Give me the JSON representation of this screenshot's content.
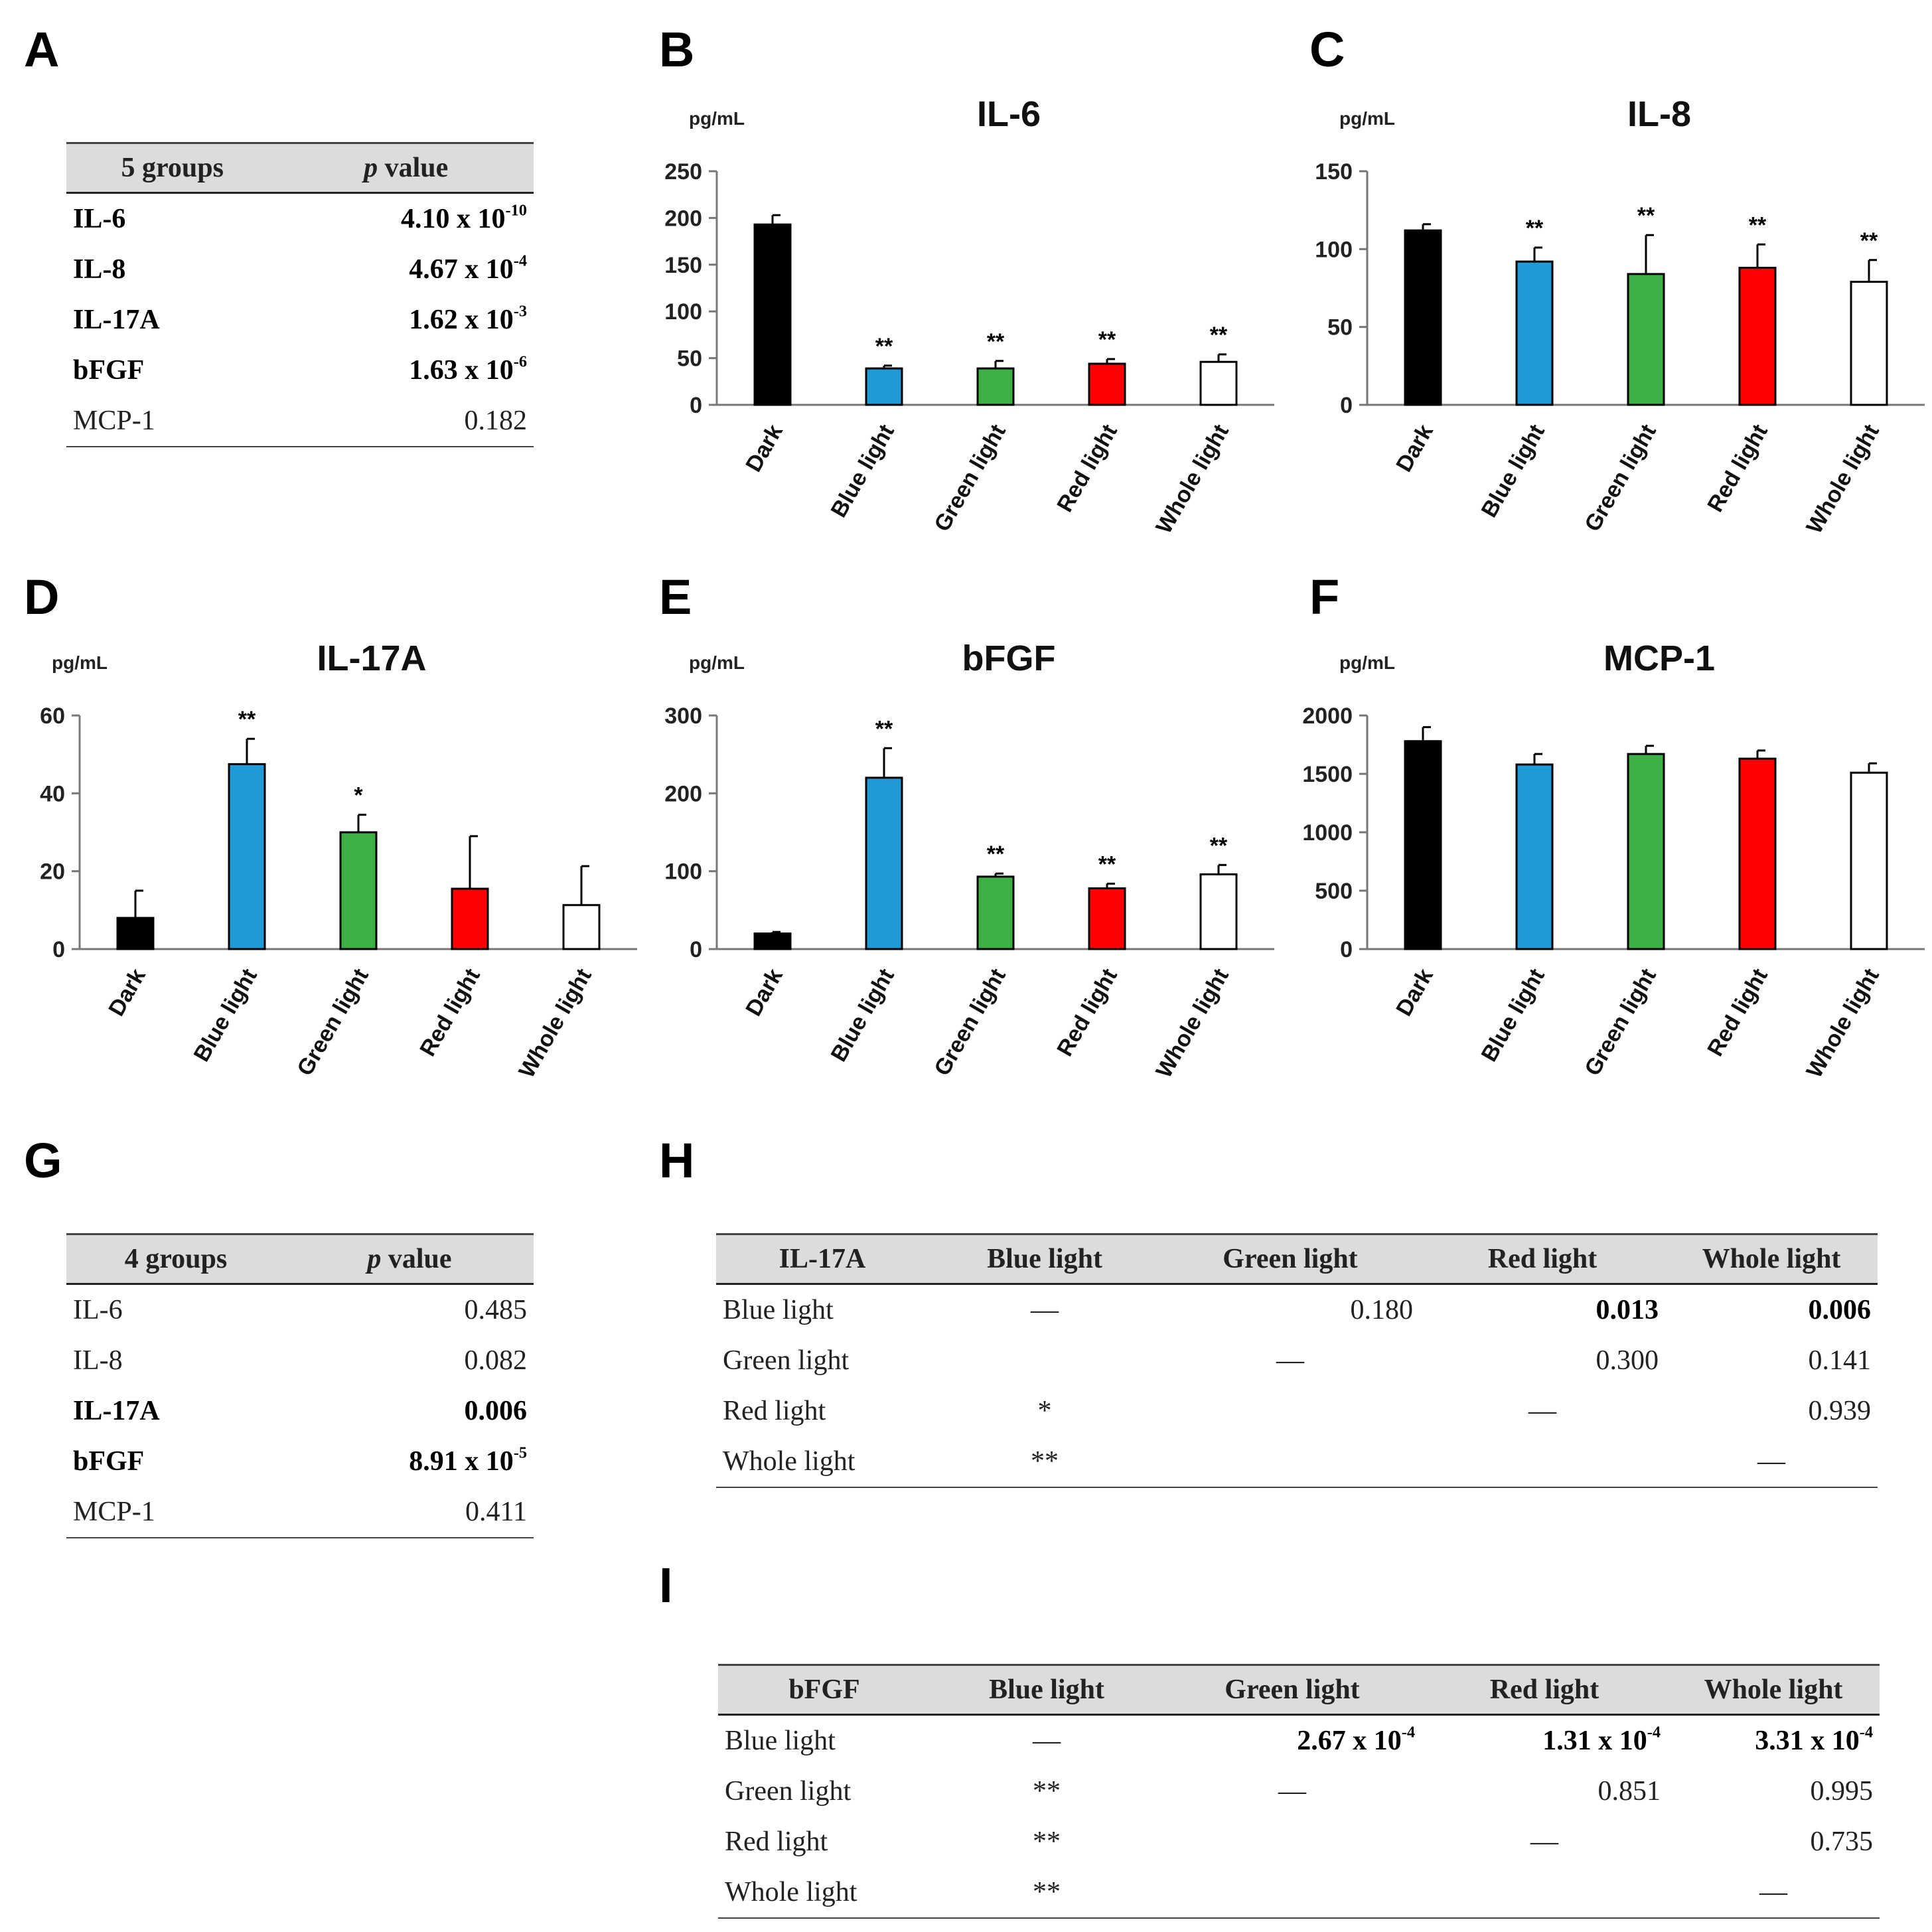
{
  "panels": {
    "A": "A",
    "B": "B",
    "C": "C",
    "D": "D",
    "E": "E",
    "F": "F",
    "G": "G",
    "H": "H",
    "I": "I"
  },
  "table_a": {
    "headers": [
      "5 groups",
      "p",
      "value"
    ],
    "rows": [
      {
        "name": "IL-6",
        "base": "4.10 x 10",
        "exp": "-10",
        "plain": "",
        "bold": true
      },
      {
        "name": "IL-8",
        "base": "4.67 x 10",
        "exp": "-4",
        "plain": "",
        "bold": true
      },
      {
        "name": "IL-17A",
        "base": "1.62 x 10",
        "exp": "-3",
        "plain": "",
        "bold": true
      },
      {
        "name": "bFGF",
        "base": "1.63 x 10",
        "exp": "-6",
        "plain": "",
        "bold": true
      },
      {
        "name": "MCP-1",
        "base": "",
        "exp": "",
        "plain": "0.182",
        "bold": false
      }
    ]
  },
  "table_g": {
    "headers": [
      "4 groups",
      "p",
      "value"
    ],
    "rows": [
      {
        "name": "IL-6",
        "base": "",
        "exp": "",
        "plain": "0.485",
        "bold": false
      },
      {
        "name": "IL-8",
        "base": "",
        "exp": "",
        "plain": "0.082",
        "bold": false
      },
      {
        "name": "IL-17A",
        "base": "",
        "exp": "",
        "plain": "0.006",
        "bold": true
      },
      {
        "name": "bFGF",
        "base": "8.91 x 10",
        "exp": "-5",
        "plain": "",
        "bold": true
      },
      {
        "name": "MCP-1",
        "base": "",
        "exp": "",
        "plain": "0.411",
        "bold": false
      }
    ]
  },
  "table_h": {
    "headers": [
      "IL-17A",
      "Blue light",
      "Green light",
      "Red light",
      "Whole light"
    ],
    "rows": [
      {
        "name": "Blue light",
        "blue": "—",
        "green": "0.180",
        "red": "0.013",
        "whole": "0.006"
      },
      {
        "name": "Green light",
        "blue": "",
        "green": "—",
        "red": "0.300",
        "whole": "0.141"
      },
      {
        "name": "Red light",
        "blue": "*",
        "green": "",
        "red": "—",
        "whole": "0.939"
      },
      {
        "name": "Whole light",
        "blue": "**",
        "green": "",
        "red": "",
        "whole": "—"
      }
    ]
  },
  "table_i": {
    "headers": [
      "bFGF",
      "Blue light",
      "Green light",
      "Red light",
      "Whole light"
    ],
    "rows": [
      {
        "name": "Blue light",
        "blue": "—",
        "green_base": "2.67 x 10",
        "green_exp": "-4",
        "red_base": "1.31 x 10",
        "red_exp": "-4",
        "whole_base": "3.31 x 10",
        "whole_exp": "-4",
        "green": "",
        "red": "",
        "whole": ""
      },
      {
        "name": "Green light",
        "blue": "**",
        "green": "—",
        "red": "0.851",
        "whole": "0.995"
      },
      {
        "name": "Red light",
        "blue": "**",
        "green": "",
        "red": "—",
        "whole": "0.735"
      },
      {
        "name": "Whole light",
        "blue": "**",
        "green": "",
        "red": "",
        "whole": "—"
      }
    ]
  },
  "colors": {
    "Dark": "#000000",
    "Blue light": "#1f9ad6",
    "Green light": "#3cb043",
    "Red light": "#ff0000",
    "Whole light": "#ffffff"
  },
  "chart_data": [
    {
      "id": "B",
      "type": "bar",
      "title": "IL-6",
      "ylabel": "pg/mL",
      "ylim": [
        0,
        250
      ],
      "yticks": [
        0,
        50,
        100,
        150,
        200,
        250
      ],
      "categories": [
        "Dark",
        "Blue light",
        "Green light",
        "Red light",
        "Whole light"
      ],
      "values": [
        193,
        39,
        39,
        44,
        46
      ],
      "errors": [
        10,
        3,
        8,
        5,
        8
      ],
      "sig": [
        "",
        "**",
        "**",
        "**",
        "**"
      ]
    },
    {
      "id": "C",
      "type": "bar",
      "title": "IL-8",
      "ylabel": "pg/mL",
      "ylim": [
        0,
        150
      ],
      "yticks": [
        0,
        50,
        100,
        150
      ],
      "categories": [
        "Dark",
        "Blue light",
        "Green light",
        "Red light",
        "Whole light"
      ],
      "values": [
        112,
        92,
        84,
        88,
        79
      ],
      "errors": [
        4,
        9,
        25,
        15,
        14
      ],
      "sig": [
        "",
        "**",
        "**",
        "**",
        "**"
      ]
    },
    {
      "id": "D",
      "type": "bar",
      "title": "IL-17A",
      "ylabel": "pg/mL",
      "ylim": [
        0,
        60
      ],
      "yticks": [
        0,
        20,
        40,
        60
      ],
      "categories": [
        "Dark",
        "Blue light",
        "Green light",
        "Red light",
        "Whole light"
      ],
      "values": [
        8,
        47.5,
        30,
        15.5,
        11.3
      ],
      "errors": [
        7,
        6.5,
        4.5,
        13.5,
        10
      ],
      "sig": [
        "",
        "**",
        "*",
        "",
        ""
      ]
    },
    {
      "id": "E",
      "type": "bar",
      "title": "bFGF",
      "ylabel": "pg/mL",
      "ylim": [
        0,
        300
      ],
      "yticks": [
        0,
        100,
        200,
        300
      ],
      "categories": [
        "Dark",
        "Blue light",
        "Green light",
        "Red light",
        "Whole light"
      ],
      "values": [
        20,
        220,
        93,
        78,
        96
      ],
      "errors": [
        2,
        38,
        4,
        6,
        12
      ],
      "sig": [
        "",
        "**",
        "**",
        "**",
        "**"
      ]
    },
    {
      "id": "F",
      "type": "bar",
      "title": "MCP-1",
      "ylabel": "pg/mL",
      "ylim": [
        0,
        2000
      ],
      "yticks": [
        0,
        500,
        1000,
        1500,
        2000
      ],
      "categories": [
        "Dark",
        "Blue light",
        "Green light",
        "Red light",
        "Whole light"
      ],
      "values": [
        1780,
        1580,
        1670,
        1630,
        1510
      ],
      "errors": [
        120,
        90,
        70,
        70,
        80
      ],
      "sig": [
        "",
        "",
        "",
        "",
        ""
      ]
    }
  ]
}
